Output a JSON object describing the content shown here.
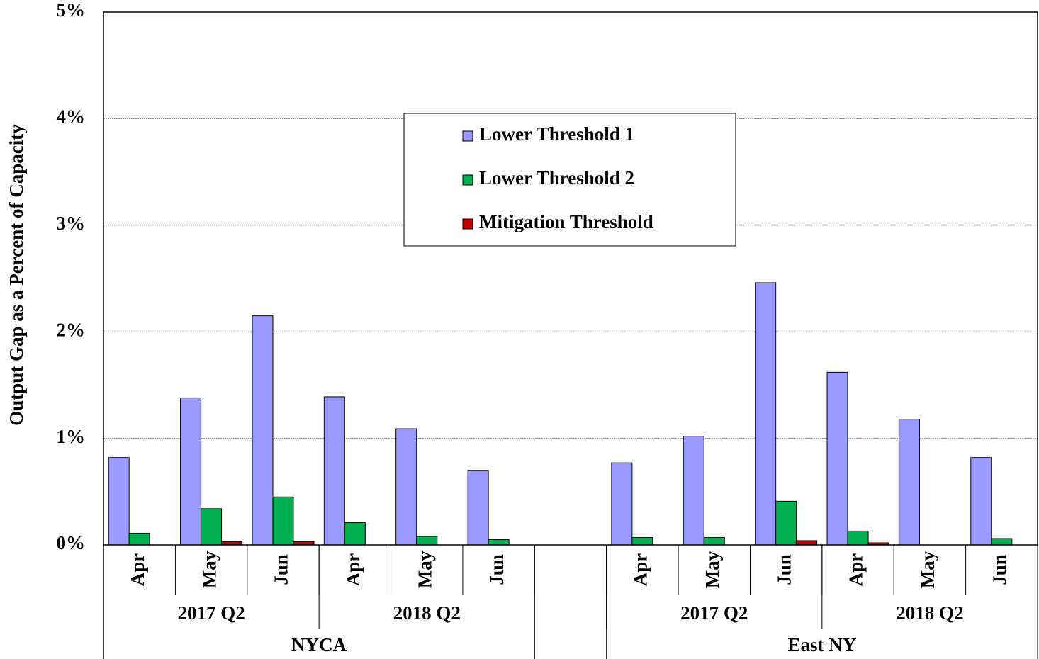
{
  "chart_data": {
    "type": "bar",
    "y_label": "Output Gap as a Percent of Capacity",
    "categories": [
      "Apr",
      "May",
      "Jun",
      "Apr",
      "May",
      "Jun",
      null,
      "Apr",
      "May",
      "Jun",
      "Apr",
      "May",
      "Jun"
    ],
    "quarters": [
      "2017 Q2",
      "2018 Q2",
      "2017 Q2",
      "2018 Q2"
    ],
    "regions": [
      "NYCA",
      "East NY"
    ],
    "series": [
      {
        "name": "Lower Threshold 1",
        "color": "#9999ff",
        "values": [
          0.82,
          1.38,
          2.15,
          1.39,
          1.09,
          0.7,
          null,
          0.77,
          1.02,
          2.46,
          1.62,
          1.18,
          0.82
        ]
      },
      {
        "name": "Lower Threshold 2",
        "color": "#00b050",
        "values": [
          0.11,
          0.34,
          0.45,
          0.21,
          0.08,
          0.05,
          null,
          0.07,
          0.07,
          0.41,
          0.13,
          0,
          0.06
        ]
      },
      {
        "name": "Mitigation Threshold",
        "color": "#c00000",
        "values": [
          0,
          0.03,
          0.03,
          0,
          0,
          0,
          null,
          0,
          0,
          0.04,
          0.02,
          0,
          0
        ]
      }
    ],
    "ylim": [
      0,
      5
    ],
    "yticks": [
      {
        "value": 0,
        "label": "0%"
      },
      {
        "value": 1,
        "label": "1%"
      },
      {
        "value": 2,
        "label": "2%"
      },
      {
        "value": 3,
        "label": "3%"
      },
      {
        "value": 4,
        "label": "4%"
      },
      {
        "value": 5,
        "label": "5%"
      }
    ],
    "grid": true
  }
}
